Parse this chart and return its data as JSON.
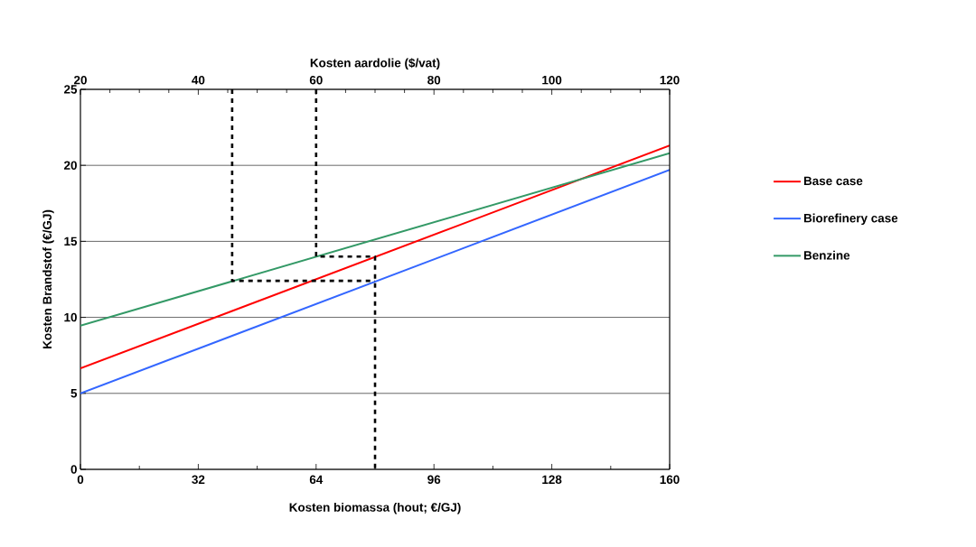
{
  "chart_data": {
    "type": "line",
    "xlabel": "Kosten biomassa (hout; €/GJ)",
    "ylabel": "Kosten Brandstof (€/GJ)",
    "x2label": "Kosten aardolie ($/vat)",
    "x": [
      0,
      160
    ],
    "series": [
      {
        "name": "Base case",
        "color": "#ff0000",
        "values": [
          6.65,
          21.3
        ]
      },
      {
        "name": "Biorefinery case",
        "color": "#3366ff",
        "values": [
          5.0,
          19.7
        ]
      },
      {
        "name": "Benzine",
        "color": "#339966",
        "values": [
          9.45,
          20.8
        ]
      },
      {
        "color": "#000000",
        "line_style": "dashed",
        "x": [
          41.2,
          41.2,
          80
        ],
        "values": [
          25,
          12.4,
          12.4
        ]
      },
      {
        "color": "#000000",
        "line_style": "dashed",
        "x": [
          64,
          64,
          80,
          80
        ],
        "values": [
          25,
          14,
          14,
          0
        ]
      }
    ],
    "xlim": [
      0,
      160
    ],
    "xticks": [
      0,
      32,
      64,
      96,
      128,
      160
    ],
    "x2lim": [
      20,
      120
    ],
    "x2ticks": [
      20,
      40,
      60,
      80,
      100,
      120
    ],
    "ylim": [
      0,
      25
    ],
    "yticks": [
      0,
      5,
      10,
      15,
      20,
      25
    ],
    "grid": "y",
    "legend": "right",
    "marker": "none",
    "line_style": "solid"
  }
}
